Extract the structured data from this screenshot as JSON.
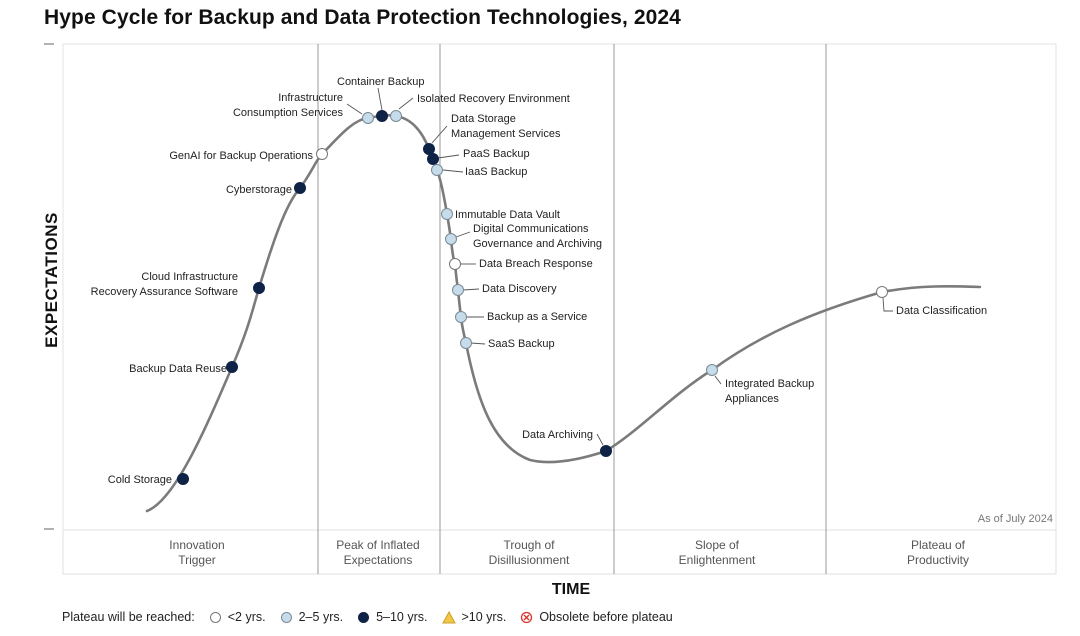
{
  "title": "Hype Cycle for Backup and Data Protection Technologies, 2024",
  "y_axis_label": "EXPECTATIONS",
  "x_axis_label": "TIME",
  "as_of": "As of July 2024",
  "phases": [
    {
      "name": "Innovation\nTrigger"
    },
    {
      "name": "Peak of Inflated\nExpectations"
    },
    {
      "name": "Trough of\nDisillusionment"
    },
    {
      "name": "Slope of\nEnlightenment"
    },
    {
      "name": "Plateau of\nProductivity"
    }
  ],
  "legend": {
    "prefix": "Plateau will be reached:",
    "items": [
      {
        "label": "<2 yrs.",
        "key": "lt2",
        "symbol": "white-circle"
      },
      {
        "label": "2–5 yrs.",
        "key": "2to5",
        "symbol": "light-blue-circle"
      },
      {
        "label": "5–10 yrs.",
        "key": "5to10",
        "symbol": "dark-navy-circle"
      },
      {
        "label": ">10 yrs.",
        "key": "gt10",
        "symbol": "yellow-triangle"
      },
      {
        "label": "Obsolete before plateau",
        "key": "obsolete",
        "symbol": "red-x-circle"
      }
    ]
  },
  "colors": {
    "lt2": "#ffffff",
    "2to5": "#c6dcea",
    "5to10": "#0f2347",
    "gt10": "#f2c744",
    "obsolete": "#d9342b",
    "curve": "#7b7b7b",
    "divider": "#9a9a9a"
  },
  "technologies": [
    {
      "name": "Cold Storage",
      "maturity": "5to10"
    },
    {
      "name": "Backup Data Reuse",
      "maturity": "5to10"
    },
    {
      "name": "Cloud Infrastructure\nRecovery Assurance Software",
      "maturity": "5to10"
    },
    {
      "name": "Cyberstorage",
      "maturity": "5to10"
    },
    {
      "name": "GenAI for Backup Operations",
      "maturity": "lt2"
    },
    {
      "name": "Infrastructure\nConsumption Services",
      "maturity": "2to5"
    },
    {
      "name": "Container Backup",
      "maturity": "5to10"
    },
    {
      "name": "Isolated Recovery Environment",
      "maturity": "2to5"
    },
    {
      "name": "Data Storage\nManagement Services",
      "maturity": "5to10"
    },
    {
      "name": "PaaS Backup",
      "maturity": "5to10"
    },
    {
      "name": "IaaS Backup",
      "maturity": "2to5"
    },
    {
      "name": "Immutable Data Vault",
      "maturity": "2to5"
    },
    {
      "name": "Digital Communications\nGovernance and Archiving",
      "maturity": "2to5"
    },
    {
      "name": "Data Breach Response",
      "maturity": "lt2"
    },
    {
      "name": "Data Discovery",
      "maturity": "2to5"
    },
    {
      "name": "Backup as a Service",
      "maturity": "2to5"
    },
    {
      "name": "SaaS Backup",
      "maturity": "2to5"
    },
    {
      "name": "Data Archiving",
      "maturity": "5to10"
    },
    {
      "name": "Integrated Backup\nAppliances",
      "maturity": "2to5"
    },
    {
      "name": "Data Classification",
      "maturity": "lt2"
    }
  ]
}
